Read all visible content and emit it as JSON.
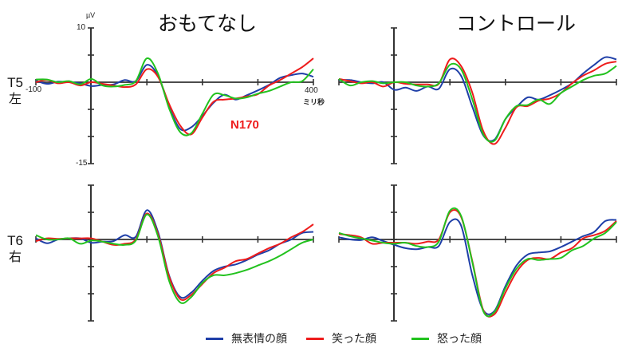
{
  "panels": {
    "left_title": "おもてなし",
    "right_title": "コントロール"
  },
  "rows": {
    "top": {
      "electrode": "T5",
      "side": "左"
    },
    "bottom": {
      "electrode": "T6",
      "side": "右"
    }
  },
  "axis": {
    "y_unit": "µV",
    "y_max_label": "10",
    "y_min_label": "-15",
    "x_min_label": "-100",
    "x_max_label": "400",
    "x_unit": "ミリ秒"
  },
  "annotation": {
    "n170": "N170"
  },
  "legend": [
    {
      "label": "無表情の顔",
      "color": "#1f3fa8"
    },
    {
      "label": "笑った顔",
      "color": "#ee1c1c"
    },
    {
      "label": "怒った顔",
      "color": "#22c21e"
    }
  ],
  "chart_data": [
    {
      "type": "line",
      "title": "おもてなし — T5 左",
      "xlabel": "ミリ秒",
      "ylabel": "µV",
      "xlim": [
        -100,
        400
      ],
      "ylim": [
        -15,
        10
      ],
      "x": [
        -100,
        -80,
        -60,
        -40,
        -20,
        0,
        20,
        40,
        60,
        80,
        100,
        120,
        140,
        160,
        180,
        200,
        220,
        240,
        260,
        280,
        300,
        320,
        340,
        360,
        380,
        400
      ],
      "series": [
        {
          "name": "無表情の顔",
          "color": "#1f3fa8",
          "values": [
            0.3,
            -0.3,
            0.1,
            0.0,
            -0.2,
            -0.7,
            -0.5,
            -0.4,
            0.4,
            0.2,
            3.2,
            1.2,
            -4.5,
            -8.6,
            -8.3,
            -6.2,
            -3.8,
            -2.3,
            -3.2,
            -2.4,
            -1.5,
            -0.5,
            0.8,
            1.3,
            1.6,
            1.0
          ]
        },
        {
          "name": "笑った顔",
          "color": "#ee1c1c",
          "values": [
            0.0,
            0.4,
            -0.2,
            0.0,
            -0.6,
            0.0,
            -0.3,
            -0.6,
            -0.9,
            -0.4,
            2.4,
            1.0,
            -4.0,
            -8.0,
            -9.6,
            -6.5,
            -3.6,
            -3.2,
            -3.0,
            -2.6,
            -2.2,
            -0.6,
            0.4,
            1.6,
            2.8,
            4.4
          ]
        },
        {
          "name": "怒った顔",
          "color": "#22c21e",
          "values": [
            0.5,
            0.5,
            0.0,
            0.2,
            -0.4,
            0.6,
            -0.6,
            -0.8,
            -0.5,
            0.2,
            4.4,
            1.6,
            -4.8,
            -9.2,
            -9.4,
            -5.8,
            -2.3,
            -2.4,
            -3.0,
            -2.8,
            -2.1,
            -1.6,
            -0.8,
            0.0,
            0.2,
            2.4
          ]
        }
      ]
    },
    {
      "type": "line",
      "title": "コントロール — T5 左",
      "xlabel": "ミリ秒",
      "ylabel": "µV",
      "xlim": [
        -100,
        400
      ],
      "ylim": [
        -15,
        10
      ],
      "x": [
        -100,
        -80,
        -60,
        -40,
        -20,
        0,
        20,
        40,
        60,
        80,
        100,
        120,
        140,
        160,
        180,
        200,
        220,
        240,
        260,
        280,
        300,
        320,
        340,
        360,
        380,
        400
      ],
      "series": [
        {
          "name": "無表情の顔",
          "color": "#1f3fa8",
          "values": [
            0.4,
            0.4,
            0.0,
            -0.2,
            0.0,
            -1.4,
            -1.0,
            -1.6,
            -0.8,
            -1.2,
            2.4,
            1.2,
            -4.4,
            -9.8,
            -10.6,
            -6.8,
            -4.6,
            -2.8,
            -3.2,
            -2.4,
            -1.4,
            -0.2,
            1.6,
            3.2,
            4.6,
            4.2
          ]
        },
        {
          "name": "笑った顔",
          "color": "#ee1c1c",
          "values": [
            0.6,
            0.2,
            -0.2,
            0.0,
            -0.8,
            0.0,
            -0.3,
            -0.4,
            -0.4,
            -0.3,
            4.2,
            3.0,
            -1.8,
            -9.0,
            -11.4,
            -8.4,
            -4.6,
            -4.4,
            -3.4,
            -3.0,
            -2.0,
            -0.2,
            1.2,
            2.2,
            3.4,
            3.8
          ]
        },
        {
          "name": "怒った顔",
          "color": "#22c21e",
          "values": [
            0.6,
            -0.6,
            0.0,
            0.2,
            -0.2,
            0.0,
            0.0,
            -0.6,
            -0.8,
            -0.2,
            3.2,
            2.4,
            -3.0,
            -9.6,
            -10.8,
            -6.8,
            -4.4,
            -4.2,
            -3.2,
            -4.0,
            -2.0,
            -0.8,
            0.4,
            1.2,
            1.6,
            3.0
          ]
        }
      ]
    },
    {
      "type": "line",
      "title": "おもてなし — T6 右",
      "xlabel": "ミリ秒",
      "ylabel": "µV",
      "xlim": [
        -100,
        400
      ],
      "ylim": [
        -15,
        10
      ],
      "x": [
        -100,
        -80,
        -60,
        -40,
        -20,
        0,
        20,
        40,
        60,
        80,
        100,
        120,
        140,
        160,
        180,
        200,
        220,
        240,
        260,
        280,
        300,
        320,
        340,
        360,
        380,
        400
      ],
      "series": [
        {
          "name": "無表情の顔",
          "color": "#1f3fa8",
          "values": [
            0.2,
            -0.7,
            0.0,
            0.2,
            0.2,
            -0.6,
            -0.4,
            -0.3,
            0.8,
            0.5,
            5.4,
            1.4,
            -6.6,
            -10.6,
            -9.8,
            -7.6,
            -5.8,
            -5.0,
            -4.6,
            -3.8,
            -2.8,
            -2.0,
            -0.8,
            0.0,
            1.2,
            1.4
          ]
        },
        {
          "name": "笑った顔",
          "color": "#ee1c1c",
          "values": [
            -0.3,
            0.2,
            0.1,
            0.2,
            0.2,
            0.2,
            -0.4,
            -1.0,
            -0.8,
            0.0,
            4.8,
            1.0,
            -6.8,
            -11.0,
            -10.2,
            -8.2,
            -6.2,
            -5.2,
            -4.0,
            -3.6,
            -2.6,
            -1.6,
            -0.8,
            0.4,
            1.4,
            2.8
          ]
        },
        {
          "name": "怒った顔",
          "color": "#22c21e",
          "values": [
            0.8,
            0.0,
            0.0,
            0.2,
            -0.8,
            -0.2,
            -0.4,
            -0.8,
            -1.0,
            -0.2,
            4.6,
            0.6,
            -7.6,
            -11.6,
            -10.6,
            -8.0,
            -6.6,
            -6.6,
            -6.2,
            -5.6,
            -4.8,
            -4.0,
            -3.0,
            -1.8,
            -0.6,
            0.0
          ]
        }
      ]
    },
    {
      "type": "line",
      "title": "コントロール — T6 右",
      "xlabel": "ミリ秒",
      "ylabel": "µV",
      "xlim": [
        -100,
        400
      ],
      "ylim": [
        -15,
        10
      ],
      "x": [
        -100,
        -80,
        -60,
        -40,
        -20,
        0,
        20,
        40,
        60,
        80,
        100,
        120,
        140,
        160,
        180,
        200,
        220,
        240,
        260,
        280,
        300,
        320,
        340,
        360,
        380,
        400
      ],
      "series": [
        {
          "name": "無表情の顔",
          "color": "#1f3fa8",
          "values": [
            0.4,
            0.0,
            -0.1,
            0.4,
            -0.3,
            -1.0,
            -1.6,
            -1.8,
            -1.4,
            -1.2,
            3.2,
            2.6,
            -6.4,
            -13.0,
            -13.2,
            -8.6,
            -4.8,
            -2.8,
            -2.4,
            -2.2,
            -1.4,
            -0.4,
            0.6,
            1.4,
            3.4,
            3.6
          ]
        },
        {
          "name": "笑った顔",
          "color": "#ee1c1c",
          "values": [
            1.0,
            0.8,
            0.4,
            -0.8,
            -0.6,
            -0.6,
            -0.6,
            -0.8,
            -0.4,
            0.0,
            5.0,
            4.2,
            -3.8,
            -13.0,
            -13.8,
            -9.8,
            -6.0,
            -3.8,
            -3.4,
            -3.6,
            -2.4,
            -1.6,
            0.2,
            0.8,
            1.6,
            3.4
          ]
        },
        {
          "name": "怒った顔",
          "color": "#22c21e",
          "values": [
            1.2,
            0.6,
            0.2,
            -0.2,
            -0.6,
            -0.8,
            -0.6,
            -1.2,
            -1.4,
            -0.4,
            5.3,
            4.4,
            -4.0,
            -13.2,
            -13.4,
            -9.0,
            -5.4,
            -3.6,
            -3.8,
            -3.6,
            -3.4,
            -2.0,
            -1.2,
            0.2,
            1.2,
            3.2
          ]
        }
      ]
    }
  ]
}
